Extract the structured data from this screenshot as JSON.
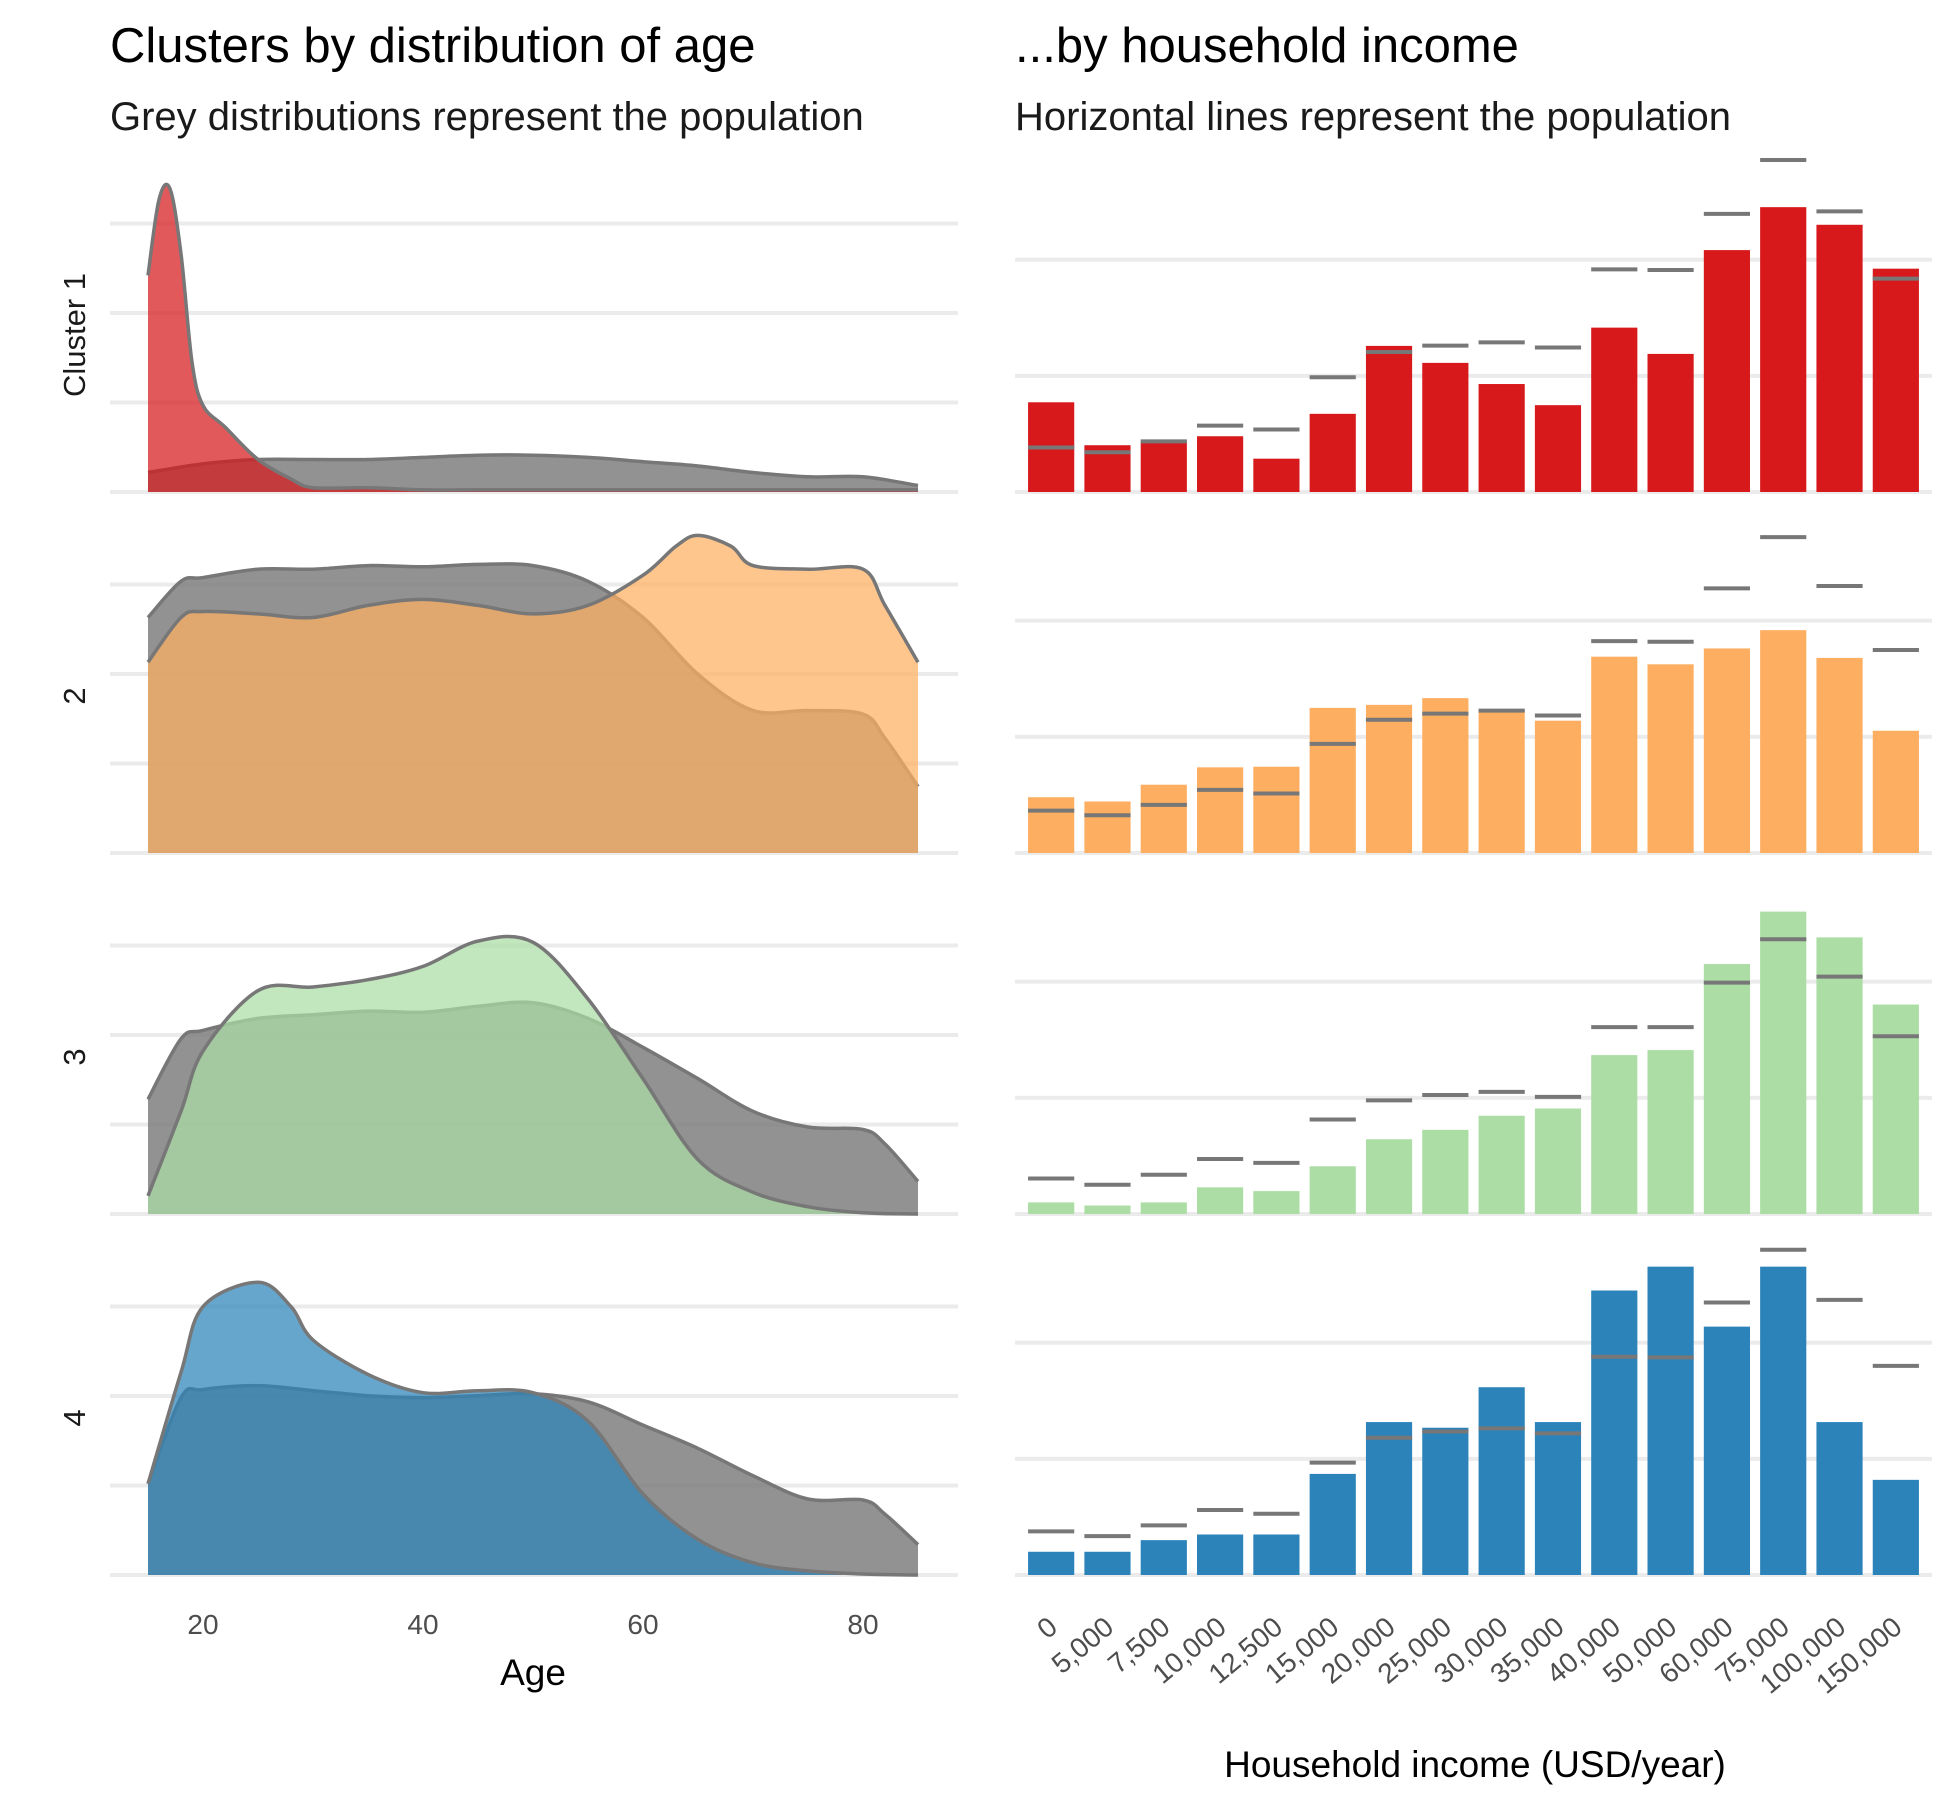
{
  "left_panel": {
    "title": "Clusters by distribution of age",
    "subtitle": "Grey distributions represent the population",
    "xlabel": "Age",
    "xticks": [
      "20",
      "40",
      "60",
      "80"
    ]
  },
  "right_panel": {
    "title": "...by household income",
    "subtitle": "Horizontal lines represent the population",
    "xlabel": "Household income (USD/year)"
  },
  "cluster_labels": [
    "Cluster 1",
    "2",
    "3",
    "4"
  ],
  "colors": {
    "population": "#7f7f7f",
    "outline": "#777777",
    "clusters": [
      "#d7191c",
      "#fdae61",
      "#abdda4",
      "#2b83ba"
    ]
  },
  "chart_data": [
    {
      "type": "area",
      "title": "Clusters by distribution of age",
      "subtitle": "Grey distributions represent the population",
      "xlabel": "Age",
      "xlim": [
        15,
        85
      ],
      "xticks": [
        20,
        40,
        60,
        80
      ],
      "grid": true,
      "facets": [
        {
          "label": "Cluster 1",
          "ymax": 0.145,
          "population": {
            "x": [
              15,
              20,
              25,
              30,
              35,
              40,
              45,
              50,
              55,
              60,
              65,
              70,
              75,
              80,
              85
            ],
            "y": [
              0.009,
              0.013,
              0.015,
              0.015,
              0.015,
              0.016,
              0.017,
              0.017,
              0.016,
              0.014,
              0.012,
              0.009,
              0.007,
              0.007,
              0.003
            ]
          },
          "cluster": {
            "x": [
              15,
              16,
              17,
              18,
              19,
              20,
              22,
              25,
              28,
              30,
              35,
              40,
              45,
              50,
              60,
              70,
              85
            ],
            "y": [
              0.1,
              0.135,
              0.14,
              0.11,
              0.06,
              0.04,
              0.03,
              0.015,
              0.006,
              0.002,
              0.002,
              0.001,
              0.001,
              0.001,
              0.001,
              0.001,
              0.001
            ]
          }
        },
        {
          "label": "2",
          "ymax": 0.026,
          "population": {
            "x": [
              15,
              18,
              20,
              25,
              30,
              35,
              40,
              45,
              50,
              55,
              60,
              65,
              70,
              75,
              80,
              82,
              85
            ],
            "y": [
              0.0195,
              0.0225,
              0.0228,
              0.0235,
              0.0235,
              0.0238,
              0.0237,
              0.0239,
              0.0238,
              0.0225,
              0.0195,
              0.0148,
              0.0118,
              0.0118,
              0.0115,
              0.0095,
              0.0055
            ]
          },
          "cluster": {
            "x": [
              15,
              18,
              20,
              25,
              30,
              35,
              40,
              45,
              50,
              55,
              60,
              63,
              65,
              68,
              70,
              75,
              80,
              82,
              85
            ],
            "y": [
              0.0158,
              0.0195,
              0.02,
              0.0198,
              0.0195,
              0.0205,
              0.021,
              0.0205,
              0.0198,
              0.0205,
              0.023,
              0.0254,
              0.0263,
              0.0254,
              0.0238,
              0.0235,
              0.0235,
              0.0205,
              0.0158
            ]
          }
        },
        {
          "label": "3",
          "ymax": 0.026,
          "population": {
            "x": [
              15,
              18,
              20,
              25,
              30,
              35,
              40,
              45,
              50,
              55,
              60,
              65,
              70,
              75,
              80,
              82,
              85
            ],
            "y": [
              0.0095,
              0.0145,
              0.0152,
              0.0162,
              0.0165,
              0.0168,
              0.0167,
              0.0172,
              0.0175,
              0.0162,
              0.0138,
              0.0112,
              0.0085,
              0.0072,
              0.007,
              0.0058,
              0.0027
            ]
          },
          "cluster": {
            "x": [
              15,
              18,
              20,
              25,
              30,
              35,
              40,
              45,
              50,
              55,
              60,
              65,
              70,
              75,
              80,
              85
            ],
            "y": [
              0.0015,
              0.0085,
              0.0135,
              0.0185,
              0.0188,
              0.0194,
              0.0205,
              0.0226,
              0.0225,
              0.0178,
              0.0112,
              0.0045,
              0.0018,
              0.0006,
              0.0001,
              0.0
            ]
          }
        },
        {
          "label": "4",
          "ymax": 0.031,
          "population": {
            "x": [
              15,
              18,
              20,
              25,
              30,
              35,
              40,
              45,
              50,
              55,
              60,
              65,
              70,
              75,
              80,
              82,
              85
            ],
            "y": [
              0.009,
              0.0175,
              0.0183,
              0.0187,
              0.0182,
              0.0177,
              0.0175,
              0.0177,
              0.0179,
              0.0171,
              0.0148,
              0.0125,
              0.0098,
              0.0075,
              0.0074,
              0.006,
              0.003
            ]
          },
          "cluster": {
            "x": [
              15,
              18,
              20,
              25,
              28,
              30,
              35,
              40,
              45,
              50,
              55,
              60,
              65,
              70,
              75,
              80,
              85
            ],
            "y": [
              0.009,
              0.02,
              0.0265,
              0.0289,
              0.0265,
              0.0232,
              0.0198,
              0.018,
              0.0182,
              0.018,
              0.0152,
              0.008,
              0.0035,
              0.0012,
              0.0004,
              0.0001,
              0.0
            ]
          }
        }
      ]
    },
    {
      "type": "bar",
      "title": "...by household income",
      "subtitle": "Horizontal lines represent the population",
      "xlabel": "Household income (USD/year)",
      "categories": [
        "0",
        "5,000",
        "7,500",
        "10,000",
        "12,500",
        "15,000",
        "20,000",
        "25,000",
        "30,000",
        "35,000",
        "40,000",
        "50,000",
        "60,000",
        "75,000",
        "100,000",
        "150,000"
      ],
      "grid": true,
      "facets": [
        {
          "label": "Cluster 1",
          "ymax": 0.098,
          "values": [
            0.028,
            0.0146,
            0.0155,
            0.0174,
            0.0104,
            0.0244,
            0.0456,
            0.0403,
            0.0337,
            0.0271,
            0.0513,
            0.0431,
            0.0755,
            0.0889,
            0.0834,
            0.0697
          ],
          "population": [
            0.0139,
            0.0124,
            0.0158,
            0.0207,
            0.0195,
            0.0358,
            0.0437,
            0.0457,
            0.0467,
            0.0451,
            0.0695,
            0.0693,
            0.0868,
            0.1036,
            0.0876,
            0.0666
          ]
        },
        {
          "label": "2",
          "ymax": 0.103,
          "values": [
            0.0183,
            0.0169,
            0.0224,
            0.0281,
            0.0283,
            0.0476,
            0.0486,
            0.0508,
            0.0471,
            0.0434,
            0.0644,
            0.0619,
            0.0671,
            0.0731,
            0.064,
            0.0401
          ],
          "population": [
            0.0139,
            0.0124,
            0.0158,
            0.0207,
            0.0195,
            0.0358,
            0.0437,
            0.0457,
            0.0467,
            0.0451,
            0.0695,
            0.0693,
            0.0868,
            0.1036,
            0.0876,
            0.0666
          ]
        },
        {
          "label": "3",
          "ymax": 0.1,
          "values": [
            0.0037,
            0.0027,
            0.0037,
            0.0085,
            0.0073,
            0.0152,
            0.0238,
            0.0268,
            0.0313,
            0.0336,
            0.0506,
            0.0522,
            0.0796,
            0.0963,
            0.0881,
            0.0667
          ],
          "population": [
            0.0113,
            0.0093,
            0.0125,
            0.0175,
            0.0163,
            0.0301,
            0.0362,
            0.0379,
            0.0389,
            0.0373,
            0.0595,
            0.0595,
            0.0737,
            0.0875,
            0.0756,
            0.0566
          ]
        },
        {
          "label": "4",
          "ymax": 0.1,
          "values": [
            0.0074,
            0.0074,
            0.0111,
            0.0129,
            0.0129,
            0.0322,
            0.0487,
            0.0469,
            0.0598,
            0.0487,
            0.0906,
            0.0982,
            0.0791,
            0.0982,
            0.0487,
            0.0303
          ],
          "population": [
            0.0139,
            0.0124,
            0.0158,
            0.0207,
            0.0195,
            0.0358,
            0.0437,
            0.0457,
            0.0467,
            0.0451,
            0.0695,
            0.0693,
            0.0868,
            0.1036,
            0.0876,
            0.0666
          ]
        }
      ]
    }
  ]
}
